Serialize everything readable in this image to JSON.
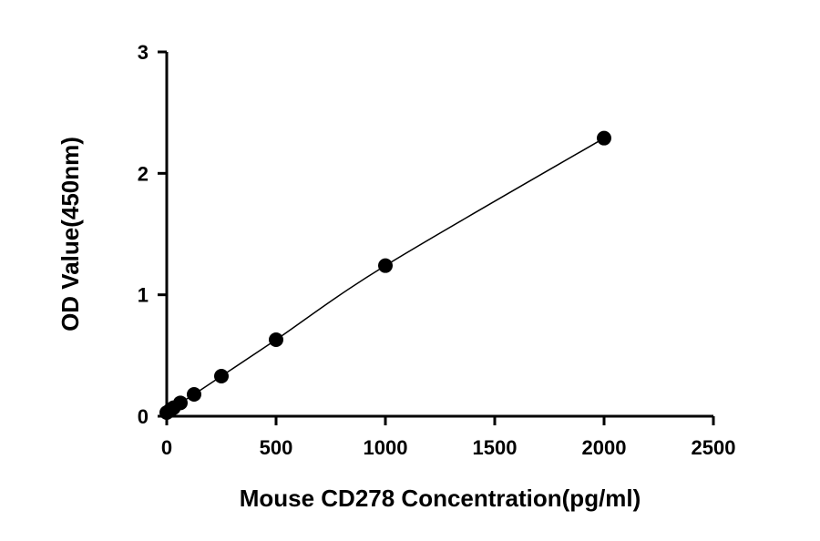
{
  "chart_data": {
    "type": "scatter",
    "x_label": "Mouse CD278 Concentration(pg/ml)",
    "y_label": "OD Value(450nm)",
    "x": [
      0,
      15.6,
      31.25,
      62.5,
      125,
      250,
      500,
      1000,
      2000
    ],
    "values": [
      0.03,
      0.05,
      0.07,
      0.11,
      0.18,
      0.33,
      0.63,
      1.24,
      2.29
    ],
    "color": "#000000",
    "xlim": [
      0,
      2500
    ],
    "xticks": [
      0,
      500,
      1000,
      1500,
      2000,
      2500
    ],
    "ylim": [
      0,
      3
    ],
    "yticks": [
      0,
      1,
      2,
      3
    ]
  }
}
